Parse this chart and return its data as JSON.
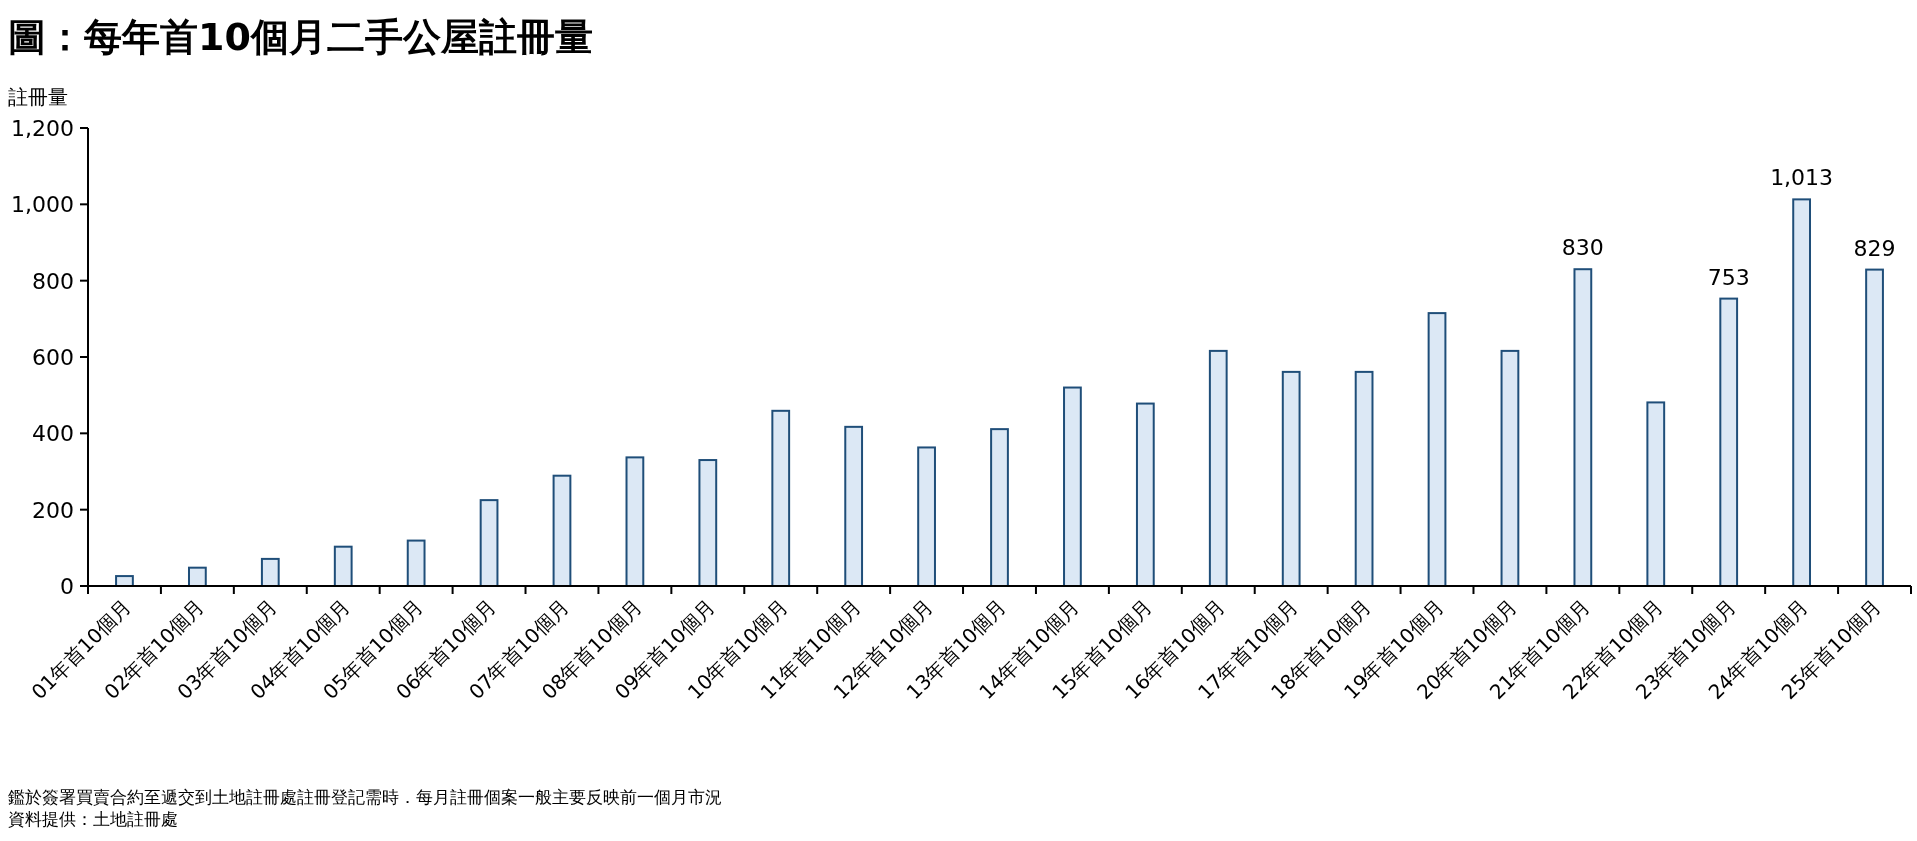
{
  "chart_data": {
    "type": "bar",
    "title": "圖：每年首10個月二手公屋註冊量",
    "ylabel": "註冊量",
    "categories": [
      "01年首10個月",
      "02年首10個月",
      "03年首10個月",
      "04年首10個月",
      "05年首10個月",
      "06年首10個月",
      "07年首10個月",
      "08年首10個月",
      "09年首10個月",
      "10年首10個月",
      "11年首10個月",
      "12年首10個月",
      "13年首10個月",
      "14年首10個月",
      "15年首10個月",
      "16年首10個月",
      "17年首10個月",
      "18年首10個月",
      "19年首10個月",
      "20年首10個月",
      "21年首10個月",
      "22年首10個月",
      "23年首10個月",
      "24年首10個月",
      "25年首10個月"
    ],
    "values": [
      26,
      48,
      71,
      103,
      119,
      225,
      289,
      337,
      330,
      459,
      417,
      363,
      411,
      520,
      478,
      616,
      561,
      561,
      715,
      616,
      830,
      481,
      753,
      1013,
      829
    ],
    "value_labels": [
      null,
      null,
      null,
      null,
      null,
      null,
      null,
      null,
      null,
      null,
      null,
      null,
      null,
      null,
      null,
      null,
      null,
      null,
      null,
      null,
      "830",
      null,
      "753",
      "1,013",
      "829"
    ],
    "color": "#dce8f5",
    "ylim": [
      0,
      1200
    ],
    "yticks": [
      0,
      200,
      400,
      600,
      800,
      {
        "value": 1000,
        "label": "1,000"
      },
      {
        "value": 1200,
        "label": "1,200"
      }
    ],
    "grid": false,
    "annotations": [
      "鑑於簽署買賣合約至遞交到土地註冊處註冊登記需時．每月註冊個案一般主要反映前一個月市況",
      "資料提供：土地註冊處"
    ]
  }
}
